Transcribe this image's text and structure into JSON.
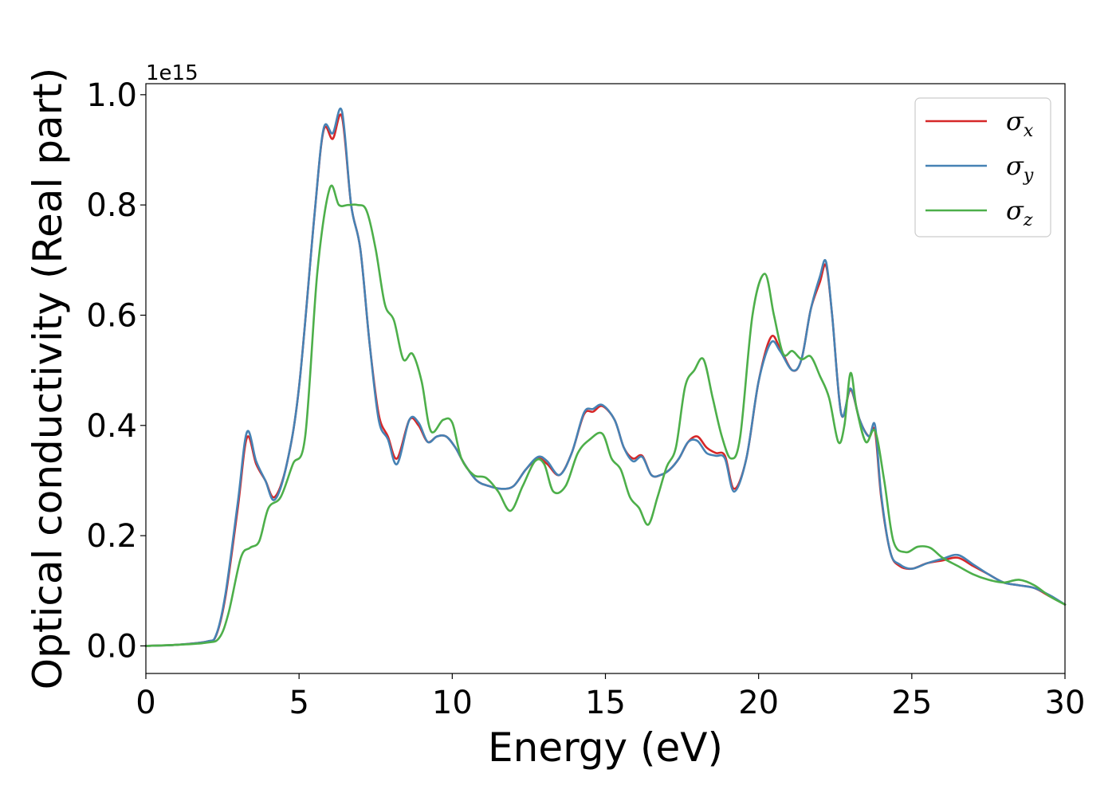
{
  "chart_data": {
    "type": "line",
    "xlabel": "Energy (eV)",
    "ylabel": "Optical conductivity (Real part)",
    "y_offset_text": "1e15",
    "xlim": [
      0,
      30
    ],
    "ylim": [
      -0.05,
      1.02
    ],
    "y_scale_factor": 1000000000000000.0,
    "x_ticks": [
      0,
      5,
      10,
      15,
      20,
      25,
      30
    ],
    "x_tick_labels": [
      "0",
      "5",
      "10",
      "15",
      "20",
      "25",
      "30"
    ],
    "y_ticks": [
      0.0,
      0.2,
      0.4,
      0.6,
      0.8,
      1.0
    ],
    "y_tick_labels": [
      "0.0",
      "0.2",
      "0.4",
      "0.6",
      "0.8",
      "1.0"
    ],
    "grid": false,
    "legend_position": "top-right",
    "series": [
      {
        "name": "σx",
        "symbol": "σ",
        "subscript": "x",
        "color": "#d62728",
        "x": [
          0,
          1,
          2,
          2.3,
          2.6,
          3,
          3.3,
          3.6,
          3.9,
          4.2,
          4.6,
          5,
          5.5,
          5.8,
          6.1,
          6.4,
          6.7,
          7,
          7.3,
          7.6,
          7.9,
          8.2,
          8.6,
          8.9,
          9.2,
          9.5,
          9.8,
          10.1,
          10.4,
          10.8,
          11.2,
          11.6,
          12,
          12.4,
          12.8,
          13.1,
          13.5,
          13.9,
          14.3,
          14.6,
          14.9,
          15.3,
          15.6,
          15.9,
          16.2,
          16.5,
          16.8,
          17.1,
          17.4,
          17.7,
          18,
          18.3,
          18.6,
          18.9,
          19.2,
          19.6,
          20,
          20.4,
          20.7,
          21.1,
          21.4,
          21.7,
          22,
          22.2,
          22.4,
          22.7,
          23,
          23.3,
          23.6,
          23.8,
          24,
          24.3,
          24.6,
          25,
          25.5,
          26,
          26.5,
          27,
          27.5,
          28,
          28.5,
          29,
          29.5,
          30
        ],
        "y": [
          0.0,
          0.002,
          0.008,
          0.02,
          0.09,
          0.25,
          0.378,
          0.33,
          0.3,
          0.27,
          0.33,
          0.47,
          0.78,
          0.935,
          0.92,
          0.96,
          0.8,
          0.72,
          0.55,
          0.42,
          0.38,
          0.34,
          0.41,
          0.4,
          0.37,
          0.38,
          0.38,
          0.36,
          0.33,
          0.3,
          0.29,
          0.285,
          0.29,
          0.32,
          0.34,
          0.33,
          0.31,
          0.35,
          0.42,
          0.425,
          0.435,
          0.41,
          0.36,
          0.34,
          0.345,
          0.31,
          0.31,
          0.32,
          0.34,
          0.37,
          0.38,
          0.36,
          0.35,
          0.345,
          0.285,
          0.34,
          0.48,
          0.56,
          0.54,
          0.5,
          0.52,
          0.61,
          0.66,
          0.69,
          0.6,
          0.42,
          0.465,
          0.41,
          0.38,
          0.39,
          0.27,
          0.17,
          0.145,
          0.14,
          0.15,
          0.155,
          0.16,
          0.145,
          0.13,
          0.115,
          0.11,
          0.105,
          0.09,
          0.075
        ]
      },
      {
        "name": "σy",
        "symbol": "σ",
        "subscript": "y",
        "color": "#4682b4",
        "x": [
          0,
          1,
          2,
          2.3,
          2.6,
          3,
          3.3,
          3.6,
          3.9,
          4.2,
          4.6,
          5,
          5.5,
          5.8,
          6.1,
          6.4,
          6.7,
          7,
          7.3,
          7.6,
          7.9,
          8.2,
          8.6,
          8.9,
          9.2,
          9.5,
          9.8,
          10.1,
          10.4,
          10.8,
          11.2,
          11.6,
          12,
          12.4,
          12.8,
          13.1,
          13.5,
          13.9,
          14.3,
          14.6,
          14.9,
          15.3,
          15.6,
          15.9,
          16.2,
          16.5,
          16.8,
          17.1,
          17.4,
          17.7,
          18,
          18.3,
          18.6,
          18.9,
          19.2,
          19.6,
          20,
          20.4,
          20.7,
          21.1,
          21.4,
          21.7,
          22,
          22.2,
          22.4,
          22.7,
          23,
          23.3,
          23.6,
          23.8,
          24,
          24.3,
          24.6,
          25,
          25.5,
          26,
          26.5,
          27,
          27.5,
          28,
          28.5,
          29,
          29.5,
          30
        ],
        "y": [
          0.0,
          0.002,
          0.008,
          0.021,
          0.095,
          0.26,
          0.388,
          0.335,
          0.3,
          0.265,
          0.33,
          0.47,
          0.78,
          0.938,
          0.93,
          0.97,
          0.8,
          0.72,
          0.55,
          0.41,
          0.375,
          0.33,
          0.41,
          0.405,
          0.37,
          0.38,
          0.38,
          0.36,
          0.33,
          0.3,
          0.29,
          0.285,
          0.29,
          0.32,
          0.343,
          0.335,
          0.31,
          0.35,
          0.423,
          0.43,
          0.437,
          0.41,
          0.36,
          0.335,
          0.343,
          0.31,
          0.31,
          0.32,
          0.34,
          0.37,
          0.372,
          0.35,
          0.345,
          0.34,
          0.28,
          0.34,
          0.48,
          0.55,
          0.535,
          0.5,
          0.52,
          0.61,
          0.67,
          0.697,
          0.6,
          0.42,
          0.467,
          0.41,
          0.38,
          0.4,
          0.275,
          0.17,
          0.148,
          0.14,
          0.15,
          0.158,
          0.165,
          0.148,
          0.13,
          0.115,
          0.11,
          0.105,
          0.092,
          0.075
        ]
      },
      {
        "name": "σz",
        "symbol": "σ",
        "subscript": "z",
        "color": "#4daf4a",
        "x": [
          0,
          1,
          2,
          2.4,
          2.7,
          3.1,
          3.4,
          3.7,
          4,
          4.4,
          4.8,
          5.2,
          5.6,
          6,
          6.3,
          6.6,
          6.9,
          7.2,
          7.5,
          7.8,
          8.1,
          8.4,
          8.7,
          9,
          9.3,
          9.7,
          10,
          10.3,
          10.7,
          11.1,
          11.5,
          11.9,
          12.3,
          12.7,
          13,
          13.3,
          13.7,
          14.1,
          14.5,
          14.9,
          15.2,
          15.5,
          15.8,
          16.1,
          16.4,
          16.7,
          17,
          17.3,
          17.6,
          17.9,
          18.2,
          18.5,
          18.8,
          19.1,
          19.4,
          19.8,
          20.2,
          20.5,
          20.8,
          21.1,
          21.4,
          21.7,
          22,
          22.3,
          22.6,
          22.8,
          23,
          23.2,
          23.5,
          23.8,
          24.1,
          24.4,
          24.8,
          25.2,
          25.6,
          26,
          26.5,
          27,
          27.5,
          28,
          28.5,
          29,
          29.5,
          30
        ],
        "y": [
          0.0,
          0.002,
          0.006,
          0.015,
          0.06,
          0.16,
          0.178,
          0.19,
          0.25,
          0.27,
          0.33,
          0.38,
          0.68,
          0.83,
          0.8,
          0.8,
          0.8,
          0.79,
          0.72,
          0.62,
          0.59,
          0.52,
          0.53,
          0.48,
          0.39,
          0.41,
          0.405,
          0.34,
          0.31,
          0.305,
          0.28,
          0.245,
          0.29,
          0.335,
          0.33,
          0.28,
          0.29,
          0.35,
          0.375,
          0.385,
          0.34,
          0.32,
          0.27,
          0.25,
          0.22,
          0.27,
          0.325,
          0.36,
          0.47,
          0.5,
          0.52,
          0.45,
          0.38,
          0.34,
          0.38,
          0.6,
          0.675,
          0.6,
          0.53,
          0.535,
          0.52,
          0.525,
          0.49,
          0.45,
          0.37,
          0.4,
          0.495,
          0.43,
          0.37,
          0.39,
          0.3,
          0.19,
          0.17,
          0.18,
          0.178,
          0.16,
          0.145,
          0.13,
          0.12,
          0.115,
          0.12,
          0.11,
          0.09,
          0.075
        ]
      }
    ]
  }
}
